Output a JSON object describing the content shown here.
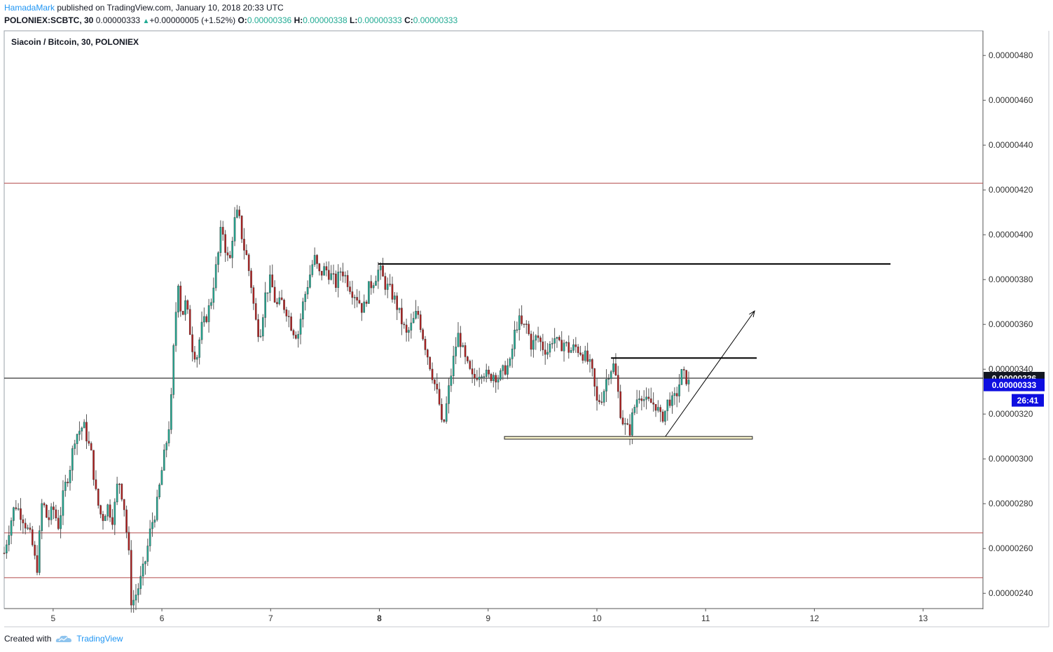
{
  "header": {
    "user": "HamadaMark",
    "published": "published on TradingView.com, January 10, 2018 20:33 UTC",
    "symbol": "POLONIEX:SCBTC, 30",
    "last": "0.00000333",
    "change": "+0.00000005 (+1.52%)",
    "o_label": "O:",
    "o": "0.00000336",
    "h_label": "H:",
    "h": "0.00000338",
    "l_label": "L:",
    "l": "0.00000333",
    "c_label": "C:",
    "c": "0.00000333"
  },
  "footer": {
    "created": "Created with",
    "brand": "TradingView"
  },
  "colors": {
    "up": "#22ab94",
    "down": "#b21f1f",
    "line_red": "#b24a4a",
    "accent": "#2196f3",
    "price_tag": "#0e0ee0"
  },
  "chart_data": {
    "type": "candlestick",
    "title": "Siacoin / Bitcoin, 30, POLONIEX",
    "x_ticks": [
      "5",
      "6",
      "7",
      "8",
      "9",
      "10",
      "11",
      "12",
      "13"
    ],
    "bold_tick": "8",
    "xlim": [
      4.55,
      13.55
    ],
    "y_ticks": [
      "0.00000240",
      "0.00000260",
      "0.00000280",
      "0.00000300",
      "0.00000320",
      "0.00000340",
      "0.00000360",
      "0.00000380",
      "0.00000400",
      "0.00000420",
      "0.00000440",
      "0.00000460",
      "0.00000480"
    ],
    "ylim": [
      2.332e-06,
      4.91e-06
    ],
    "price_labels": [
      {
        "text": "0.00000336",
        "value": 3.36e-06,
        "style": "dark"
      },
      {
        "text": "0.00000333",
        "value": 3.33e-06,
        "style": "blue"
      },
      {
        "text": "26:41",
        "style": "blue-timer"
      }
    ],
    "horizontal_lines": [
      {
        "y": 4.23e-06,
        "color": "line_red"
      },
      {
        "y": 3.36e-06,
        "color": "black"
      },
      {
        "y": 2.67e-06,
        "color": "line_red"
      },
      {
        "y": 2.47e-06,
        "color": "line_red"
      }
    ],
    "segments": [
      {
        "x1": 7.99,
        "y1": 3.87e-06,
        "x2": 12.7,
        "y2": 3.87e-06
      },
      {
        "x1": 10.13,
        "y1": 3.45e-06,
        "x2": 11.47,
        "y2": 3.45e-06
      }
    ],
    "rect": {
      "x1": 9.15,
      "x2": 11.43,
      "y1": 3.1e-06,
      "y2": 3.088e-06
    },
    "arrow": {
      "x1": 10.63,
      "y1": 3.1e-06,
      "x2": 11.45,
      "y2": 3.66e-06
    },
    "anchors": [
      [
        4.55,
        2.58
      ],
      [
        4.6,
        2.7
      ],
      [
        4.65,
        2.8
      ],
      [
        4.72,
        2.74
      ],
      [
        4.8,
        2.64
      ],
      [
        4.85,
        2.5
      ],
      [
        4.9,
        2.82
      ],
      [
        4.95,
        2.72
      ],
      [
        5.0,
        2.78
      ],
      [
        5.05,
        2.7
      ],
      [
        5.1,
        2.86
      ],
      [
        5.15,
        2.95
      ],
      [
        5.2,
        3.1
      ],
      [
        5.28,
        3.15
      ],
      [
        5.35,
        3.02
      ],
      [
        5.4,
        2.82
      ],
      [
        5.45,
        2.73
      ],
      [
        5.5,
        2.79
      ],
      [
        5.55,
        2.73
      ],
      [
        5.6,
        2.92
      ],
      [
        5.65,
        2.8
      ],
      [
        5.7,
        2.55
      ],
      [
        5.72,
        2.35
      ],
      [
        5.75,
        2.38
      ],
      [
        5.8,
        2.45
      ],
      [
        5.85,
        2.55
      ],
      [
        5.9,
        2.7
      ],
      [
        5.95,
        2.78
      ],
      [
        6.0,
        2.95
      ],
      [
        6.05,
        3.1
      ],
      [
        6.08,
        3.2
      ],
      [
        6.1,
        3.42
      ],
      [
        6.12,
        3.6
      ],
      [
        6.15,
        3.8
      ],
      [
        6.18,
        3.63
      ],
      [
        6.22,
        3.7
      ],
      [
        6.25,
        3.6
      ],
      [
        6.28,
        3.5
      ],
      [
        6.32,
        3.45
      ],
      [
        6.36,
        3.58
      ],
      [
        6.4,
        3.62
      ],
      [
        6.45,
        3.7
      ],
      [
        6.48,
        3.8
      ],
      [
        6.52,
        3.92
      ],
      [
        6.55,
        4.05
      ],
      [
        6.58,
        3.95
      ],
      [
        6.62,
        3.86
      ],
      [
        6.66,
        4.05
      ],
      [
        6.7,
        4.1
      ],
      [
        6.75,
        3.95
      ],
      [
        6.78,
        3.9
      ],
      [
        6.82,
        3.78
      ],
      [
        6.86,
        3.62
      ],
      [
        6.9,
        3.55
      ],
      [
        6.95,
        3.73
      ],
      [
        7.0,
        3.8
      ],
      [
        7.05,
        3.68
      ],
      [
        7.1,
        3.7
      ],
      [
        7.15,
        3.66
      ],
      [
        7.2,
        3.58
      ],
      [
        7.25,
        3.55
      ],
      [
        7.3,
        3.7
      ],
      [
        7.35,
        3.8
      ],
      [
        7.4,
        3.9
      ],
      [
        7.45,
        3.82
      ],
      [
        7.5,
        3.85
      ],
      [
        7.55,
        3.82
      ],
      [
        7.6,
        3.78
      ],
      [
        7.65,
        3.85
      ],
      [
        7.7,
        3.8
      ],
      [
        7.75,
        3.75
      ],
      [
        7.8,
        3.72
      ],
      [
        7.85,
        3.66
      ],
      [
        7.9,
        3.76
      ],
      [
        7.95,
        3.8
      ],
      [
        8.0,
        3.85
      ],
      [
        8.05,
        3.78
      ],
      [
        8.1,
        3.75
      ],
      [
        8.15,
        3.7
      ],
      [
        8.2,
        3.62
      ],
      [
        8.25,
        3.55
      ],
      [
        8.3,
        3.6
      ],
      [
        8.35,
        3.66
      ],
      [
        8.4,
        3.55
      ],
      [
        8.45,
        3.45
      ],
      [
        8.5,
        3.35
      ],
      [
        8.55,
        3.25
      ],
      [
        8.58,
        3.12
      ],
      [
        8.62,
        3.25
      ],
      [
        8.65,
        3.35
      ],
      [
        8.7,
        3.5
      ],
      [
        8.73,
        3.56
      ],
      [
        8.78,
        3.45
      ],
      [
        8.82,
        3.4
      ],
      [
        8.86,
        3.35
      ],
      [
        8.9,
        3.38
      ],
      [
        8.95,
        3.4
      ],
      [
        9.0,
        3.36
      ],
      [
        9.05,
        3.38
      ],
      [
        9.1,
        3.36
      ],
      [
        9.15,
        3.4
      ],
      [
        9.2,
        3.42
      ],
      [
        9.25,
        3.58
      ],
      [
        9.28,
        3.62
      ],
      [
        9.32,
        3.58
      ],
      [
        9.35,
        3.6
      ],
      [
        9.4,
        3.5
      ],
      [
        9.45,
        3.55
      ],
      [
        9.5,
        3.5
      ],
      [
        9.55,
        3.48
      ],
      [
        9.6,
        3.55
      ],
      [
        9.65,
        3.5
      ],
      [
        9.7,
        3.52
      ],
      [
        9.75,
        3.48
      ],
      [
        9.8,
        3.5
      ],
      [
        9.85,
        3.48
      ],
      [
        9.9,
        3.45
      ],
      [
        9.95,
        3.4
      ],
      [
        10.0,
        3.25
      ],
      [
        10.05,
        3.28
      ],
      [
        10.1,
        3.38
      ],
      [
        10.15,
        3.42
      ],
      [
        10.18,
        3.35
      ],
      [
        10.22,
        3.2
      ],
      [
        10.25,
        3.15
      ],
      [
        10.3,
        3.12
      ],
      [
        10.33,
        3.2
      ],
      [
        10.36,
        3.26
      ],
      [
        10.4,
        3.3
      ],
      [
        10.45,
        3.25
      ],
      [
        10.5,
        3.25
      ],
      [
        10.55,
        3.24
      ],
      [
        10.58,
        3.18
      ],
      [
        10.62,
        3.2
      ],
      [
        10.66,
        3.27
      ],
      [
        10.7,
        3.25
      ],
      [
        10.74,
        3.3
      ],
      [
        10.78,
        3.38
      ],
      [
        10.82,
        3.36
      ],
      [
        10.85,
        3.33
      ]
    ]
  }
}
